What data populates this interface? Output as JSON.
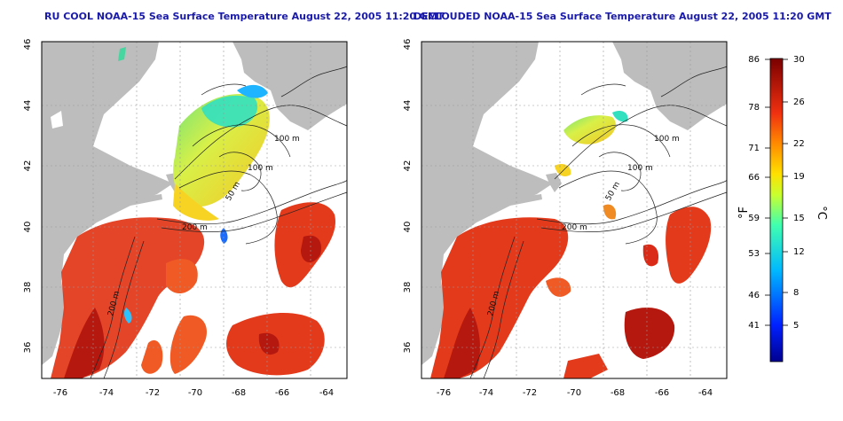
{
  "maps": [
    {
      "title": "RU COOL NOAA-15 Sea Surface Temperature August 22, 2005 11:20 GMT",
      "x_ticks": [
        "-76",
        "-74",
        "-72",
        "-70",
        "-68",
        "-66",
        "-64"
      ],
      "y_ticks": [
        "36",
        "38",
        "40",
        "42",
        "44",
        "46"
      ],
      "contour_labels": [
        "100 m",
        "100 m",
        "50 m",
        "200 m",
        "200 m"
      ]
    },
    {
      "title": "DECLOUDED NOAA-15 Sea Surface Temperature August 22, 2005 11:20 GMT",
      "x_ticks": [
        "-76",
        "-74",
        "-72",
        "-70",
        "-68",
        "-66",
        "-64"
      ],
      "y_ticks": [
        "36",
        "38",
        "40",
        "42",
        "44",
        "46"
      ],
      "contour_labels": [
        "100 m",
        "100 m",
        "50 m",
        "200 m",
        "200 m"
      ]
    }
  ],
  "colorbar": {
    "fahrenheit_ticks": [
      "86",
      "78",
      "71",
      "66",
      "59",
      "53",
      "46",
      "41"
    ],
    "celsius_ticks": [
      "30",
      "26",
      "22",
      "19",
      "15",
      "12",
      "8",
      "5"
    ],
    "fahrenheit_label": "°F",
    "celsius_label": "°C"
  },
  "colors": {
    "land": "#bdbdbd",
    "warm_sst": "#e33a1c",
    "title": "#1a1aa8"
  }
}
